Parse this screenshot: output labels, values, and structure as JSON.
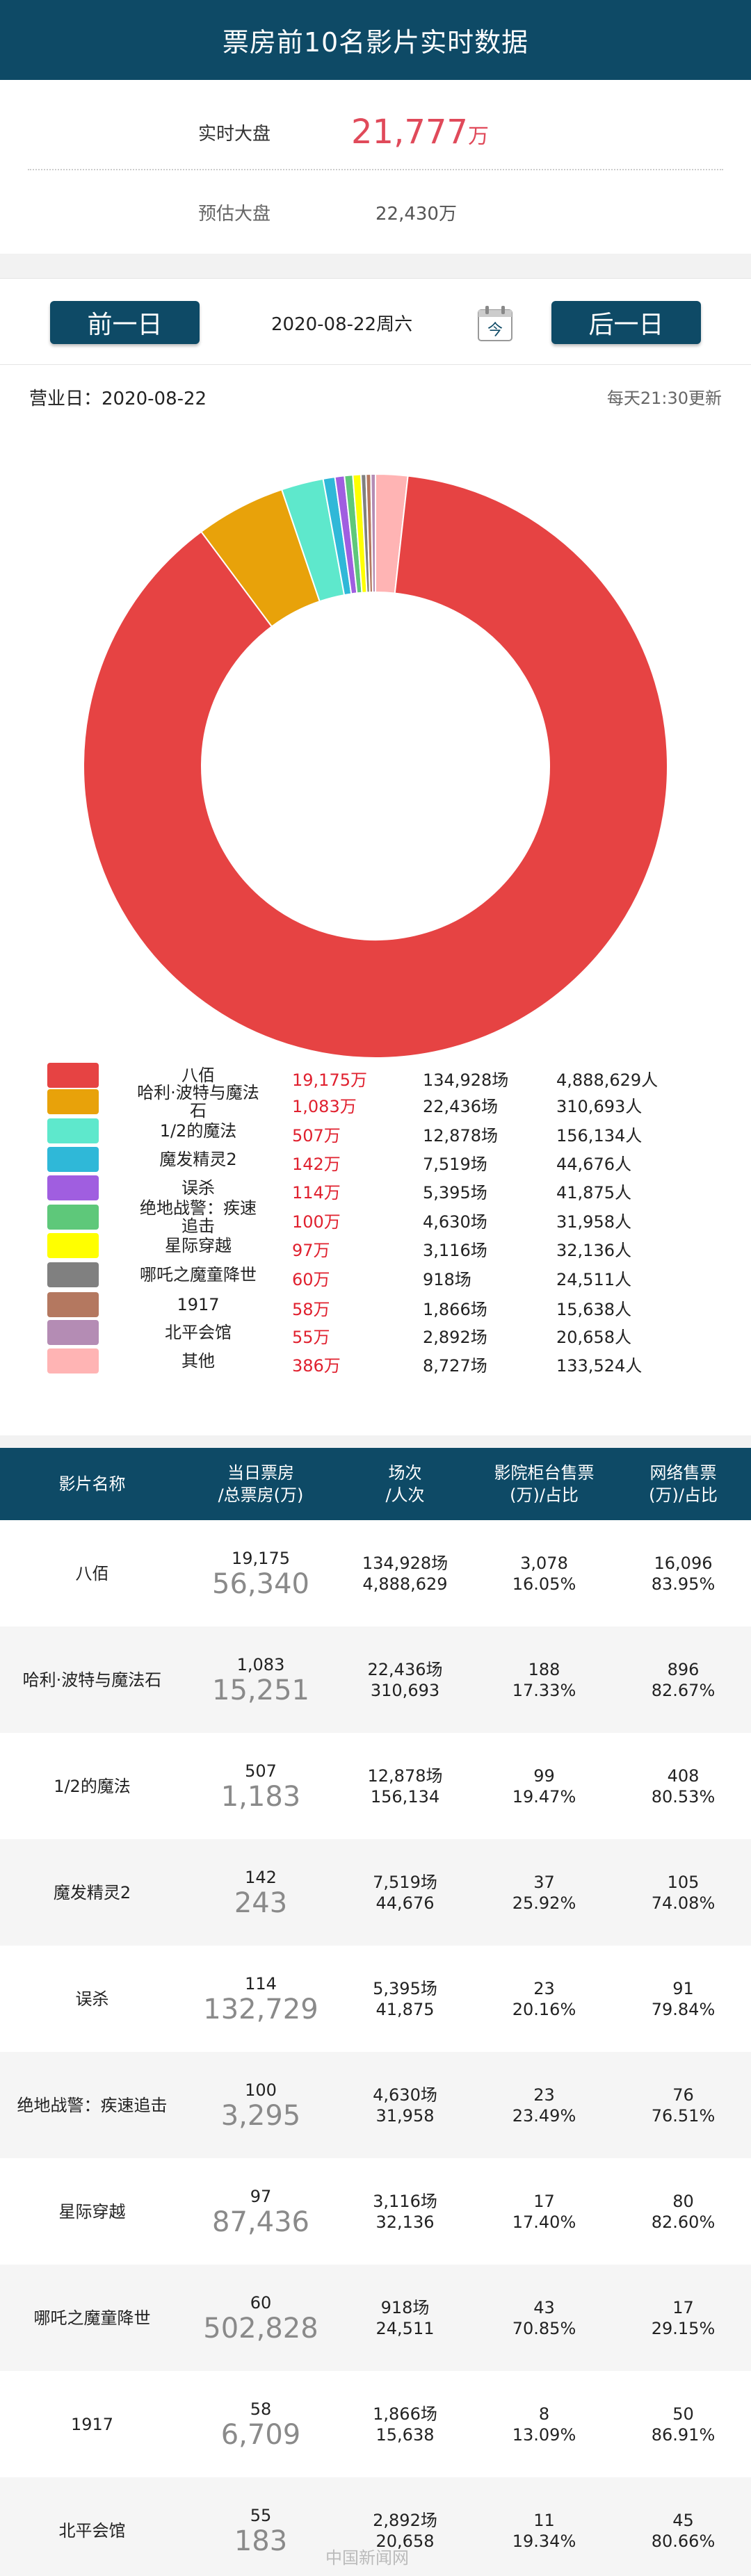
{
  "header": {
    "title": "票房前10名影片实时数据"
  },
  "summary": {
    "realtime_label": "实时大盘",
    "realtime_value": "21,777",
    "realtime_unit": "万",
    "estimate_label": "预估大盘",
    "estimate_value": "22,430万"
  },
  "datebar": {
    "prev_label": "前一日",
    "next_label": "后一日",
    "date": "2020-08-22周六",
    "today_label": "今"
  },
  "info": {
    "business_date": "营业日：2020-08-22",
    "update_note": "每天21:30更新"
  },
  "colors": {
    "header_bg": "#0e4a66",
    "box_red": "#e0202e"
  },
  "chart_data": {
    "type": "pie",
    "categories": [
      "八佰",
      "哈利·波特与魔法石",
      "1/2的魔法",
      "魔发精灵2",
      "误杀",
      "绝地战警：疾速追击",
      "星际穿越",
      "哪吒之魔童降世",
      "1917",
      "北平会馆",
      "其他"
    ],
    "values": [
      19175,
      1083,
      507,
      142,
      114,
      100,
      97,
      60,
      58,
      55,
      386
    ],
    "colors": [
      "#e64343",
      "#e8a20a",
      "#5ee8cc",
      "#2fb8d8",
      "#a05ee0",
      "#5ec87a",
      "#ffff00",
      "#808080",
      "#b47860",
      "#b48cb4",
      "#ffb4b4"
    ]
  },
  "legend": [
    {
      "name": "八佰",
      "box": "19,175万",
      "shows": "134,928场",
      "aud": "4,888,629人"
    },
    {
      "name": "哈利·波特与魔法石",
      "box": "1,083万",
      "shows": "22,436场",
      "aud": "310,693人"
    },
    {
      "name": "1/2的魔法",
      "box": "507万",
      "shows": "12,878场",
      "aud": "156,134人"
    },
    {
      "name": "魔发精灵2",
      "box": "142万",
      "shows": "7,519场",
      "aud": "44,676人"
    },
    {
      "name": "误杀",
      "box": "114万",
      "shows": "5,395场",
      "aud": "41,875人"
    },
    {
      "name": "绝地战警：疾速追击",
      "box": "100万",
      "shows": "4,630场",
      "aud": "31,958人"
    },
    {
      "name": "星际穿越",
      "box": "97万",
      "shows": "3,116场",
      "aud": "32,136人"
    },
    {
      "name": "哪吒之魔童降世",
      "box": "60万",
      "shows": "918场",
      "aud": "24,511人"
    },
    {
      "name": "1917",
      "box": "58万",
      "shows": "1,866场",
      "aud": "15,638人"
    },
    {
      "name": "北平会馆",
      "box": "55万",
      "shows": "2,892场",
      "aud": "20,658人"
    },
    {
      "name": "其他",
      "box": "386万",
      "shows": "8,727场",
      "aud": "133,524人"
    }
  ],
  "table": {
    "headers": [
      "影片名称",
      "当日票房\n/总票房(万)",
      "场次\n/人次",
      "影院柜台售票\n(万)/占比",
      "网络售票\n(万)/占比"
    ],
    "rows": [
      {
        "name": "八佰",
        "day": "19,175",
        "total": "56,340",
        "shows": "134,928场",
        "aud": "4,888,629",
        "counter": "3,078",
        "counter_pct": "16.05%",
        "online": "16,096",
        "online_pct": "83.95%"
      },
      {
        "name": "哈利·波特与魔法石",
        "day": "1,083",
        "total": "15,251",
        "shows": "22,436场",
        "aud": "310,693",
        "counter": "188",
        "counter_pct": "17.33%",
        "online": "896",
        "online_pct": "82.67%"
      },
      {
        "name": "1/2的魔法",
        "day": "507",
        "total": "1,183",
        "shows": "12,878场",
        "aud": "156,134",
        "counter": "99",
        "counter_pct": "19.47%",
        "online": "408",
        "online_pct": "80.53%"
      },
      {
        "name": "魔发精灵2",
        "day": "142",
        "total": "243",
        "shows": "7,519场",
        "aud": "44,676",
        "counter": "37",
        "counter_pct": "25.92%",
        "online": "105",
        "online_pct": "74.08%"
      },
      {
        "name": "误杀",
        "day": "114",
        "total": "132,729",
        "shows": "5,395场",
        "aud": "41,875",
        "counter": "23",
        "counter_pct": "20.16%",
        "online": "91",
        "online_pct": "79.84%"
      },
      {
        "name": "绝地战警：疾速追击",
        "day": "100",
        "total": "3,295",
        "shows": "4,630场",
        "aud": "31,958",
        "counter": "23",
        "counter_pct": "23.49%",
        "online": "76",
        "online_pct": "76.51%"
      },
      {
        "name": "星际穿越",
        "day": "97",
        "total": "87,436",
        "shows": "3,116场",
        "aud": "32,136",
        "counter": "17",
        "counter_pct": "17.40%",
        "online": "80",
        "online_pct": "82.60%"
      },
      {
        "name": "哪吒之魔童降世",
        "day": "60",
        "total": "502,828",
        "shows": "918场",
        "aud": "24,511",
        "counter": "43",
        "counter_pct": "70.85%",
        "online": "17",
        "online_pct": "29.15%"
      },
      {
        "name": "1917",
        "day": "58",
        "total": "6,709",
        "shows": "1,866场",
        "aud": "15,638",
        "counter": "8",
        "counter_pct": "13.09%",
        "online": "50",
        "online_pct": "86.91%"
      },
      {
        "name": "北平会馆",
        "day": "55",
        "total": "183",
        "shows": "2,892场",
        "aud": "20,658",
        "counter": "11",
        "counter_pct": "19.34%",
        "online": "45",
        "online_pct": "80.66%"
      }
    ]
  },
  "watermark": "中国新闻网"
}
